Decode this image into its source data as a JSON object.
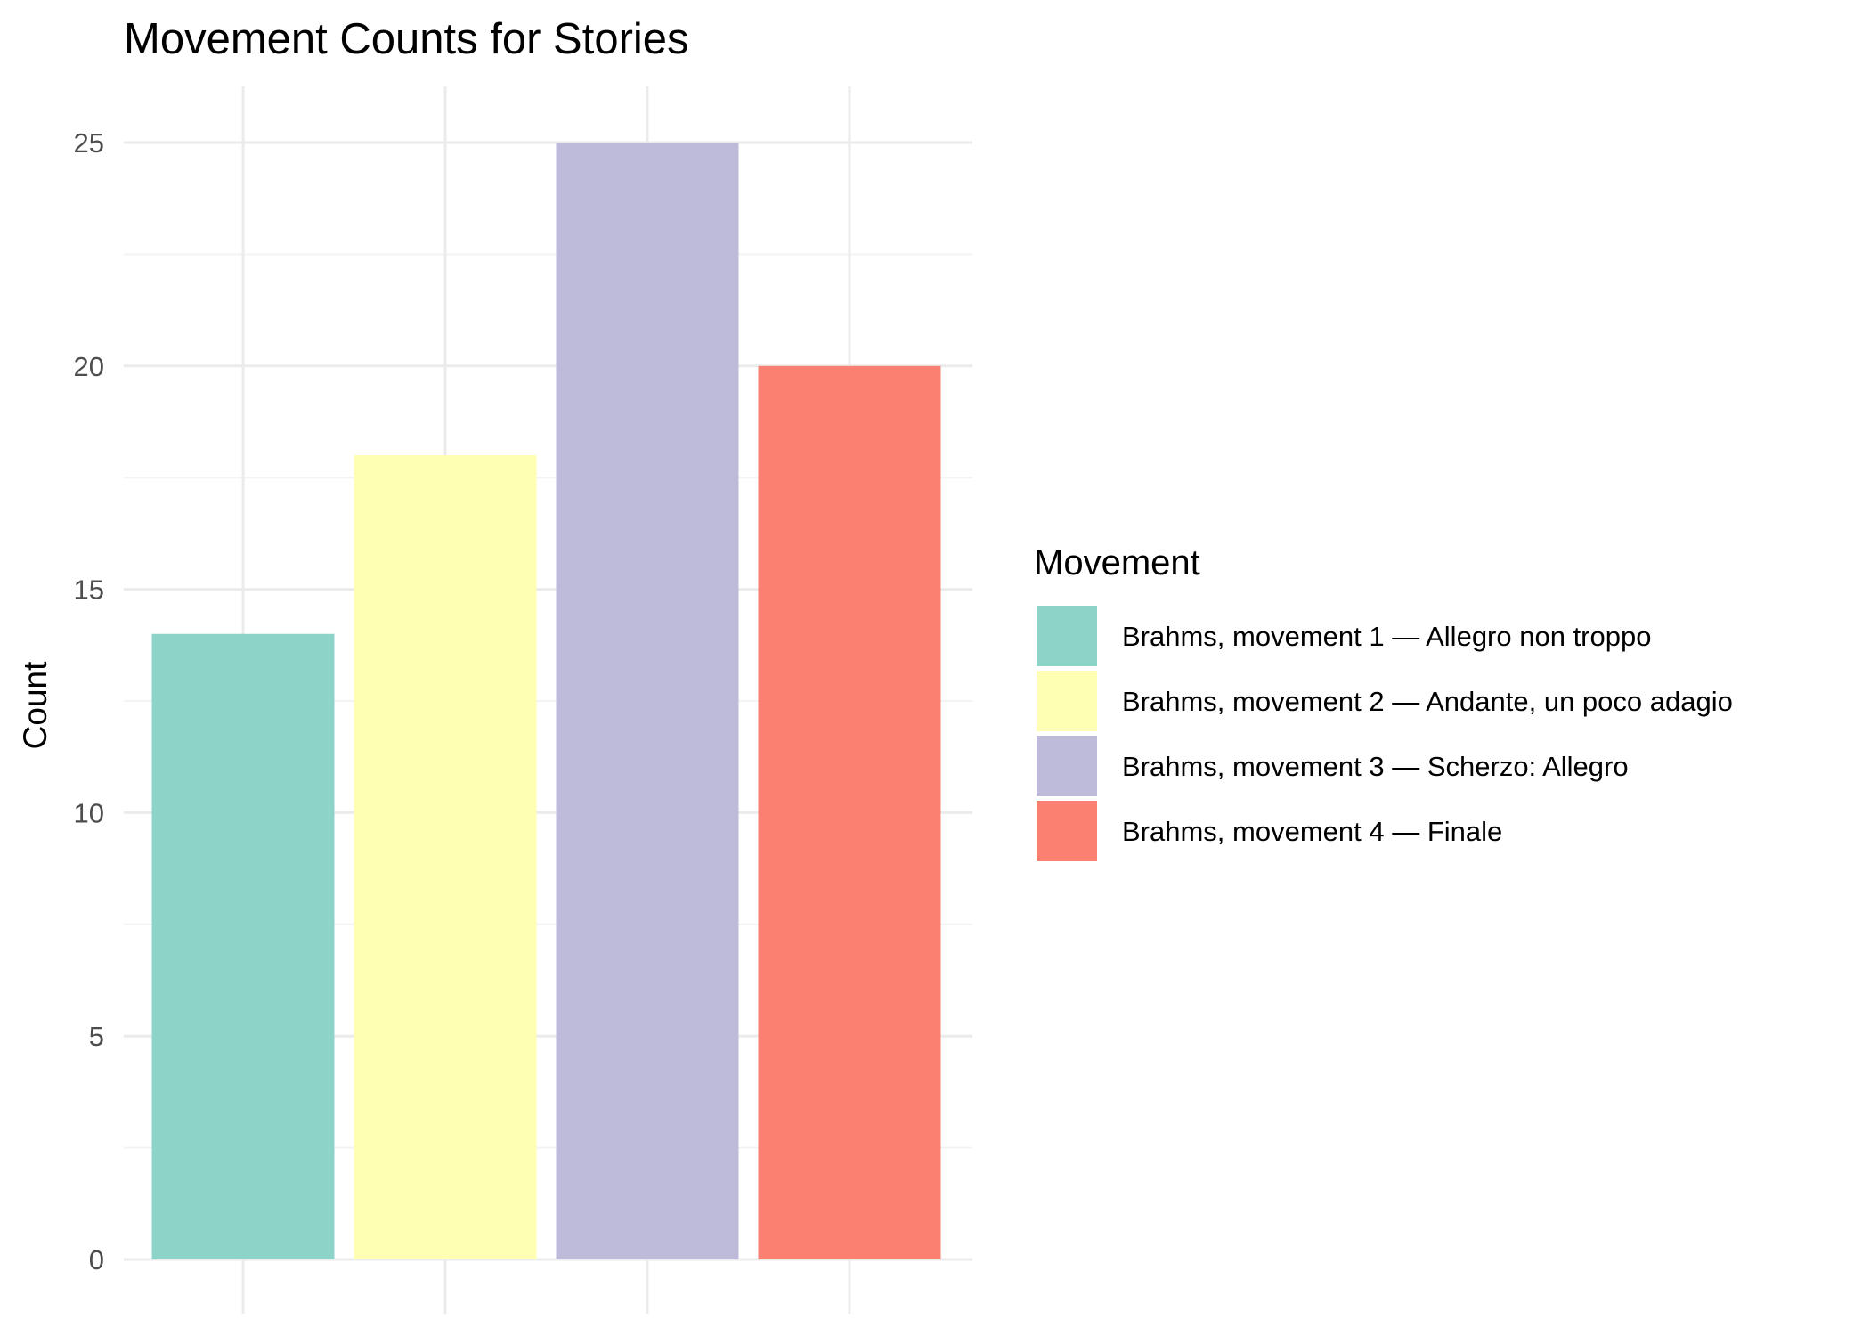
{
  "chart_data": {
    "type": "bar",
    "title": "Movement Counts for Stories",
    "xlabel": "",
    "ylabel": "Count",
    "ylim": [
      0,
      26.25
    ],
    "yticks": [
      0,
      5,
      10,
      15,
      20,
      25
    ],
    "grid": true,
    "legend": {
      "title": "Movement",
      "position": "right"
    },
    "categories": [
      "Brahms, movement 1 — Allegro non troppo",
      "Brahms, movement 2 — Andante, un poco adagio",
      "Brahms, movement 3 — Scherzo: Allegro",
      "Brahms, movement 4 — Finale"
    ],
    "values": [
      14,
      18,
      25,
      20
    ],
    "colors": [
      "#8ED3C7",
      "#FFFFB3",
      "#BEBADA",
      "#FB8072"
    ]
  }
}
